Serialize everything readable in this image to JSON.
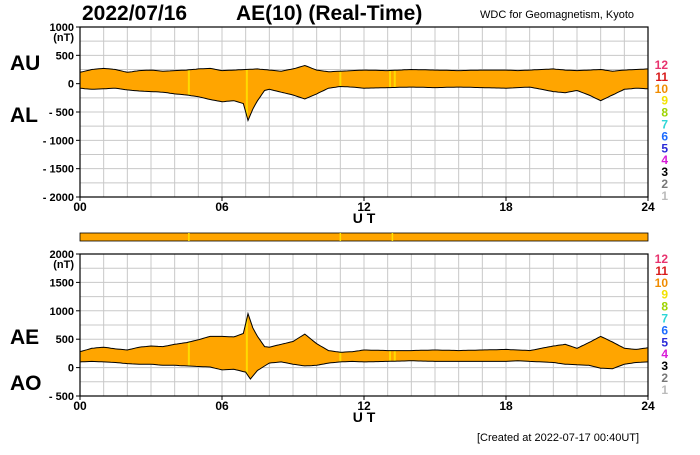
{
  "header": {
    "date": "2022/07/16",
    "title": "AE(10) (Real-Time)",
    "institution": "WDC for Geomagnetism, Kyoto",
    "created": "[Created at 2022-07-17 00:40UT]"
  },
  "panel_labels": {
    "au": "AU",
    "al": "AL",
    "ae": "AE",
    "ao": "AO"
  },
  "colors": {
    "fill": "#ffa500",
    "highlight": "#ffe000",
    "grid": "#c8c8c8",
    "line": "#000000"
  },
  "legend": {
    "labels": [
      "12",
      "11",
      "10",
      "9",
      "8",
      "7",
      "6",
      "5",
      "4",
      "3",
      "2",
      "1"
    ],
    "colors": [
      "#e8336e",
      "#d81b1b",
      "#f08c00",
      "#f2e200",
      "#9ed400",
      "#2fd6d6",
      "#1e6cff",
      "#2a2ad8",
      "#d81bd8",
      "#000000",
      "#777777",
      "#bbbbbb"
    ]
  },
  "chart_data": [
    {
      "type": "area",
      "name": "upper",
      "title": "AE(10) (Real-Time)",
      "units": "(nT)",
      "xlabel": "U T",
      "xlim": [
        0,
        24
      ],
      "xticks": [
        0,
        6,
        12,
        18,
        24
      ],
      "xtick_labels": [
        "00",
        "06",
        "12",
        "18",
        "24"
      ],
      "ylim": [
        -2000,
        1000
      ],
      "yticks": [
        1000,
        500,
        0,
        -500,
        -1000,
        -1500,
        -2000
      ],
      "ytick_labels": [
        "1000",
        "500",
        "0",
        "- 500",
        "- 1000",
        "- 1500",
        "- 2000"
      ],
      "series": [
        {
          "name": "AU",
          "x": [
            0,
            0.5,
            1,
            1.5,
            2,
            2.5,
            3,
            3.5,
            4,
            4.5,
            5,
            5.5,
            6,
            6.5,
            7,
            7.5,
            8,
            8.5,
            9,
            9.5,
            10,
            10.5,
            11,
            11.5,
            12,
            13,
            14,
            15,
            16,
            17,
            18,
            18.5,
            19,
            19.5,
            20,
            20.5,
            21,
            21.5,
            22,
            22.5,
            23,
            23.5,
            24
          ],
          "values": [
            200,
            250,
            270,
            250,
            200,
            230,
            240,
            220,
            230,
            240,
            260,
            270,
            230,
            240,
            250,
            260,
            240,
            220,
            260,
            320,
            240,
            210,
            220,
            230,
            240,
            230,
            250,
            240,
            230,
            240,
            240,
            230,
            240,
            250,
            260,
            240,
            230,
            240,
            250,
            220,
            240,
            250,
            260
          ]
        },
        {
          "name": "AL",
          "x": [
            0,
            0.5,
            1,
            1.5,
            2,
            2.5,
            3,
            3.5,
            4,
            4.5,
            5,
            5.5,
            6,
            6.5,
            6.9,
            7.1,
            7.3,
            7.5,
            7.8,
            8,
            8.5,
            9,
            9.5,
            10,
            10.5,
            11,
            11.5,
            12,
            13,
            14,
            15,
            16,
            17,
            18,
            18.5,
            19,
            19.5,
            20,
            20.5,
            21,
            21.5,
            22,
            22.5,
            23,
            23.5,
            24
          ],
          "values": [
            -80,
            -100,
            -90,
            -80,
            -110,
            -130,
            -140,
            -150,
            -180,
            -200,
            -230,
            -280,
            -320,
            -300,
            -350,
            -650,
            -450,
            -300,
            -120,
            -100,
            -150,
            -200,
            -270,
            -180,
            -80,
            -50,
            -60,
            -80,
            -70,
            -60,
            -70,
            -60,
            -70,
            -80,
            -70,
            -60,
            -100,
            -140,
            -160,
            -120,
            -200,
            -300,
            -200,
            -100,
            -80,
            -90
          ]
        }
      ]
    },
    {
      "type": "area",
      "name": "lower",
      "units": "(nT)",
      "xlabel": "U T",
      "xlim": [
        0,
        24
      ],
      "xticks": [
        0,
        6,
        12,
        18,
        24
      ],
      "xtick_labels": [
        "00",
        "06",
        "12",
        "18",
        "24"
      ],
      "ylim": [
        -500,
        2000
      ],
      "yticks": [
        2000,
        1500,
        1000,
        500,
        0,
        -500
      ],
      "ytick_labels": [
        "2000",
        "1500",
        "1000",
        "500",
        "0",
        "- 500"
      ],
      "series": [
        {
          "name": "AE",
          "x": [
            0,
            0.5,
            1,
            1.5,
            2,
            2.5,
            3,
            3.5,
            4,
            4.5,
            5,
            5.5,
            6,
            6.5,
            6.9,
            7.1,
            7.3,
            7.5,
            7.8,
            8,
            8.5,
            9,
            9.5,
            10,
            10.5,
            11,
            11.5,
            12,
            13,
            14,
            15,
            16,
            17,
            18,
            18.5,
            19,
            19.5,
            20,
            20.5,
            21,
            21.5,
            22,
            22.5,
            23,
            23.5,
            24
          ],
          "values": [
            280,
            340,
            360,
            330,
            310,
            360,
            380,
            370,
            410,
            440,
            490,
            550,
            550,
            540,
            600,
            950,
            700,
            550,
            370,
            360,
            410,
            460,
            590,
            420,
            300,
            270,
            280,
            310,
            300,
            300,
            310,
            300,
            310,
            320,
            310,
            300,
            340,
            380,
            410,
            340,
            440,
            550,
            450,
            340,
            320,
            350
          ]
        },
        {
          "name": "AO",
          "x": [
            0,
            0.5,
            1,
            1.5,
            2,
            2.5,
            3,
            3.5,
            4,
            4.5,
            5,
            5.5,
            6,
            6.5,
            7,
            7.2,
            7.5,
            8,
            8.5,
            9,
            9.5,
            10,
            10.5,
            11,
            11.5,
            12,
            13,
            14,
            15,
            16,
            17,
            18,
            18.5,
            19,
            19.5,
            20,
            20.5,
            21,
            21.5,
            22,
            22.5,
            23,
            23.5,
            24
          ],
          "values": [
            100,
            110,
            100,
            90,
            70,
            60,
            60,
            40,
            40,
            30,
            20,
            10,
            -40,
            -30,
            -80,
            -200,
            -50,
            80,
            100,
            60,
            30,
            40,
            80,
            100,
            110,
            100,
            110,
            120,
            110,
            110,
            110,
            110,
            120,
            110,
            100,
            90,
            60,
            50,
            40,
            -10,
            -20,
            60,
            90,
            100
          ]
        }
      ]
    }
  ]
}
